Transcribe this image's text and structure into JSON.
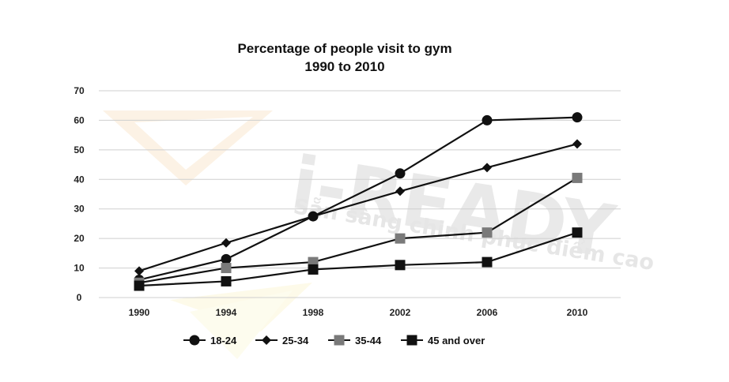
{
  "chart_data": {
    "type": "line",
    "title_line1": "Percentage of people visit to gym",
    "title_line2": "1990 to 2010",
    "x": [
      "1990",
      "1994",
      "1998",
      "2002",
      "2006",
      "2010"
    ],
    "ylim": [
      0,
      70
    ],
    "yticks": [
      "0",
      "10",
      "20",
      "30",
      "40",
      "50",
      "60",
      "70"
    ],
    "xlabel": "",
    "ylabel": "",
    "grid": true,
    "legend_position": "bottom",
    "series": [
      {
        "name": "18-24",
        "marker": "circle",
        "color": "#111111",
        "values": [
          6,
          13,
          27.5,
          42,
          60,
          61
        ]
      },
      {
        "name": "25-34",
        "marker": "diamond",
        "color": "#111111",
        "values": [
          9,
          18.5,
          27.5,
          36,
          44,
          52
        ]
      },
      {
        "name": "35-44",
        "marker": "square",
        "color": "#7a7a7a",
        "values": [
          5,
          10,
          12,
          20,
          22,
          40.5
        ]
      },
      {
        "name": "45 and over",
        "marker": "square",
        "color": "#111111",
        "values": [
          4,
          5.5,
          9.5,
          11,
          12,
          22
        ]
      }
    ]
  },
  "watermark": {
    "brand": "i-READY",
    "slogan": "Sẵn sàng chinh phục điểm cao"
  }
}
